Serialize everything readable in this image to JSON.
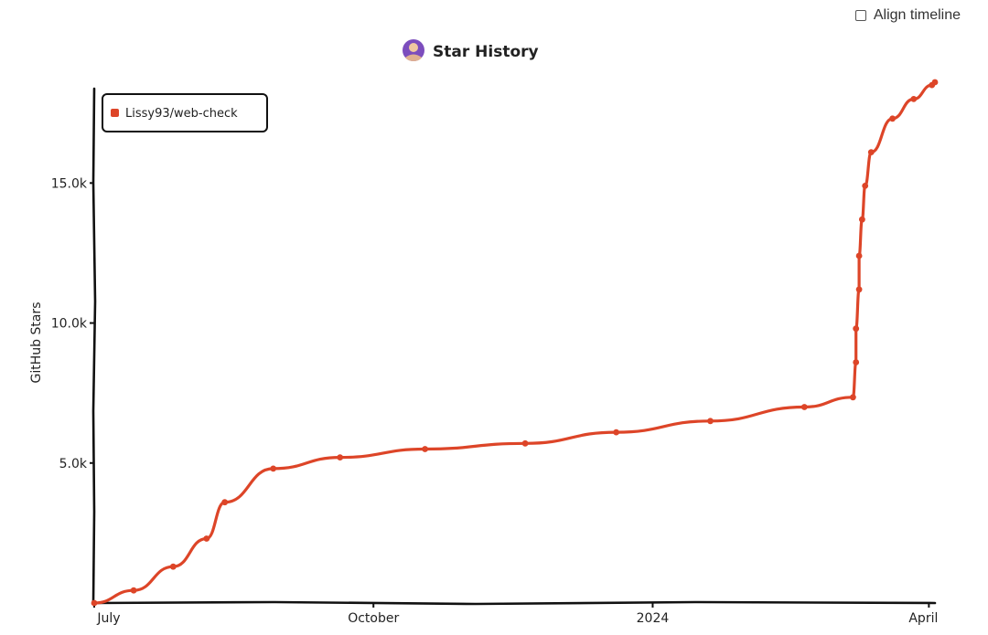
{
  "controls": {
    "align_timeline_label": "Align timeline",
    "align_timeline_checked": false
  },
  "chart_data": {
    "type": "line",
    "title": "Star History",
    "xlabel": "",
    "ylabel": "GitHub Stars",
    "x_ticks": [
      {
        "label": "July",
        "date": "2023-07-01"
      },
      {
        "label": "October",
        "date": "2023-10-01"
      },
      {
        "label": "2024",
        "date": "2024-01-01"
      },
      {
        "label": "April",
        "date": "2024-04-01"
      }
    ],
    "y_ticks": [
      {
        "label": "5.0k",
        "value": 5000
      },
      {
        "label": "10.0k",
        "value": 10000
      },
      {
        "label": "15.0k",
        "value": 15000
      }
    ],
    "ylim": [
      0,
      18600
    ],
    "xlim": [
      "2023-07-01",
      "2024-04-03"
    ],
    "grid": false,
    "legend_position": "top-left",
    "series": [
      {
        "name": "Lissy93/web-check",
        "color": "#dd4528",
        "points": [
          {
            "date": "2023-07-01",
            "value": 0
          },
          {
            "date": "2023-07-14",
            "value": 450
          },
          {
            "date": "2023-07-27",
            "value": 1300
          },
          {
            "date": "2023-08-07",
            "value": 2300
          },
          {
            "date": "2023-08-13",
            "value": 3600
          },
          {
            "date": "2023-08-29",
            "value": 4800
          },
          {
            "date": "2023-09-20",
            "value": 5200
          },
          {
            "date": "2023-10-18",
            "value": 5500
          },
          {
            "date": "2023-11-20",
            "value": 5700
          },
          {
            "date": "2023-12-20",
            "value": 6100
          },
          {
            "date": "2024-01-20",
            "value": 6500
          },
          {
            "date": "2024-02-20",
            "value": 7000
          },
          {
            "date": "2024-03-07",
            "value": 7350
          },
          {
            "date": "2024-03-08",
            "value": 8600
          },
          {
            "date": "2024-03-08",
            "value": 9800
          },
          {
            "date": "2024-03-09",
            "value": 11200
          },
          {
            "date": "2024-03-09",
            "value": 12400
          },
          {
            "date": "2024-03-10",
            "value": 13700
          },
          {
            "date": "2024-03-11",
            "value": 14900
          },
          {
            "date": "2024-03-13",
            "value": 16100
          },
          {
            "date": "2024-03-20",
            "value": 17300
          },
          {
            "date": "2024-03-27",
            "value": 18000
          },
          {
            "date": "2024-04-02",
            "value": 18500
          },
          {
            "date": "2024-04-03",
            "value": 18600
          }
        ]
      }
    ]
  }
}
